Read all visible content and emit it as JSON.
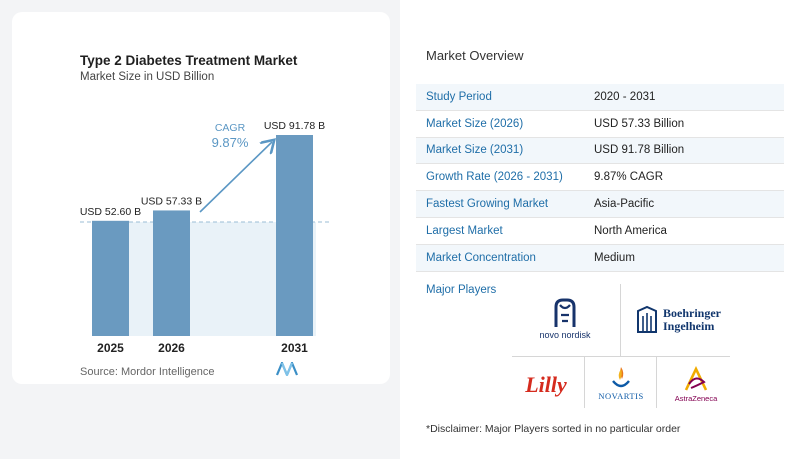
{
  "chart": {
    "title": "Type 2 Diabetes Treatment Market",
    "subtitle": "Market Size in USD Billion",
    "source": "Source:  Mordor Intelligence",
    "cagr_label": "CAGR",
    "cagr_value": "9.87%"
  },
  "chart_data": {
    "type": "bar",
    "categories": [
      "2025",
      "2026",
      "2031"
    ],
    "values": [
      52.6,
      57.33,
      91.78
    ],
    "value_labels": [
      "USD 52.60 B",
      "USD 57.33 B",
      "USD 91.78 B"
    ],
    "title": "Type 2 Diabetes Treatment Market",
    "subtitle": "Market Size in USD Billion",
    "xlabel": "",
    "ylabel": "",
    "ylim": [
      0,
      100
    ],
    "grid": false,
    "bar_color": "#6a9ac0",
    "annotation": "CAGR 9.87%"
  },
  "overview": {
    "title": "Market Overview",
    "rows": [
      {
        "label": "Study Period",
        "value": "2020 - 2031"
      },
      {
        "label": "Market Size (2026)",
        "value": "USD 57.33 Billion"
      },
      {
        "label": "Market Size (2031)",
        "value": "USD 91.78 Billion"
      },
      {
        "label": "Growth Rate (2026 - 2031)",
        "value": "9.87% CAGR"
      },
      {
        "label": "Fastest Growing Market",
        "value": "Asia-Pacific"
      },
      {
        "label": "Largest Market",
        "value": "North America"
      },
      {
        "label": "Market Concentration",
        "value": "Medium"
      }
    ]
  },
  "players": {
    "title": "Major Players",
    "logos": {
      "novo": "novo nordisk",
      "boehringer_1": "Boehringer",
      "boehringer_2": "Ingelheim",
      "lilly": "Lilly",
      "novartis": "NOVARTIS",
      "astrazeneca": "AstraZeneca"
    }
  },
  "disclaimer": "*Disclaimer: Major Players sorted in no particular order",
  "colors": {
    "accent": "#1f6ea8",
    "bar": "#6a9ac0",
    "arrow": "#5b97c4"
  }
}
